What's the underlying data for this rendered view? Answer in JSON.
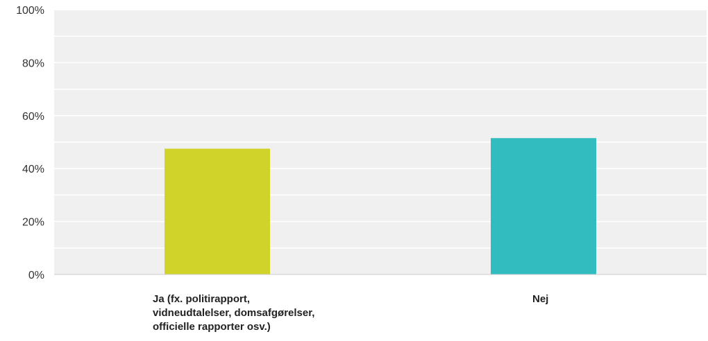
{
  "chart_data": {
    "type": "bar",
    "categories": [
      "Ja (fx. politirapport, vidneudtalelser, domsafgørelser, officielle rapporter osv.)",
      "Nej"
    ],
    "category_label_lines": [
      [
        "Ja (fx. politirapport,",
        "vidneudtalelser, domsafgørelser,",
        "officielle rapporter osv.)"
      ],
      [
        "Nej"
      ]
    ],
    "values": [
      47.5,
      51.5
    ],
    "colors": [
      "#d0d32a",
      "#33bcc0"
    ],
    "ylim": [
      0,
      100
    ],
    "yticks": [
      0,
      20,
      40,
      60,
      80,
      100
    ],
    "ytick_labels": [
      "0%",
      "20%",
      "40%",
      "60%",
      "80%",
      "100%"
    ],
    "minor_gridlines": true,
    "plot_background": "#f0f0f0",
    "gridline_color": "#ffffff",
    "title": "",
    "xlabel": "",
    "ylabel": ""
  }
}
